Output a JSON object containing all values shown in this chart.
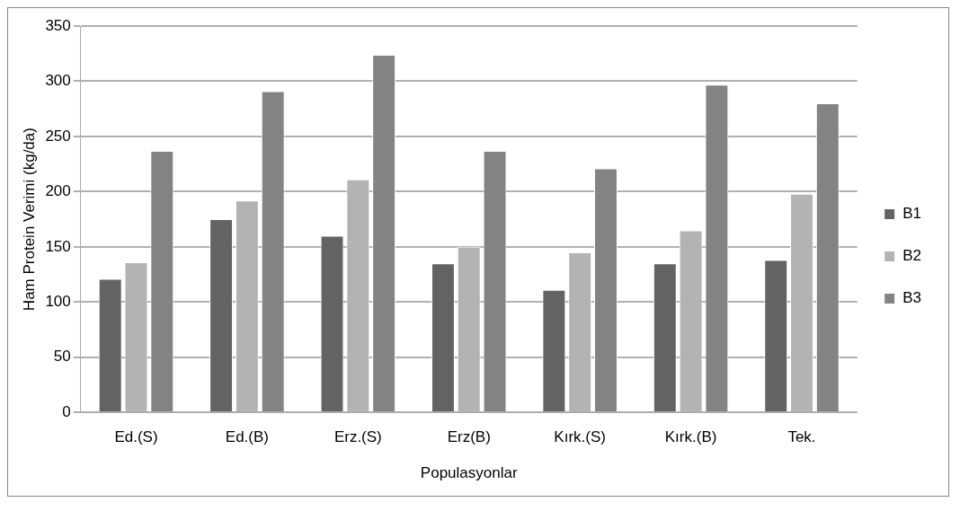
{
  "chart_data": {
    "type": "bar",
    "xlabel": "Populasyonlar",
    "ylabel": "Ham Protein Verimi (kg/da)",
    "categories": [
      "Ed.(S)",
      "Ed.(B)",
      "Erz.(S)",
      "Erz(B)",
      "Kırk.(S)",
      "Kırk.(B)",
      "Tek."
    ],
    "series": [
      {
        "name": "B1",
        "color": "#636363",
        "values": [
          121,
          175,
          160,
          135,
          111,
          135,
          138
        ]
      },
      {
        "name": "B2",
        "color": "#b3b3b3",
        "values": [
          136,
          192,
          211,
          150,
          145,
          165,
          198
        ]
      },
      {
        "name": "B3",
        "color": "#838383",
        "values": [
          237,
          291,
          324,
          237,
          221,
          297,
          280
        ]
      }
    ],
    "ylim": [
      0,
      350
    ],
    "yticks": [
      0,
      50,
      100,
      150,
      200,
      250,
      300,
      350
    ],
    "grid": "y",
    "legend": "right"
  }
}
